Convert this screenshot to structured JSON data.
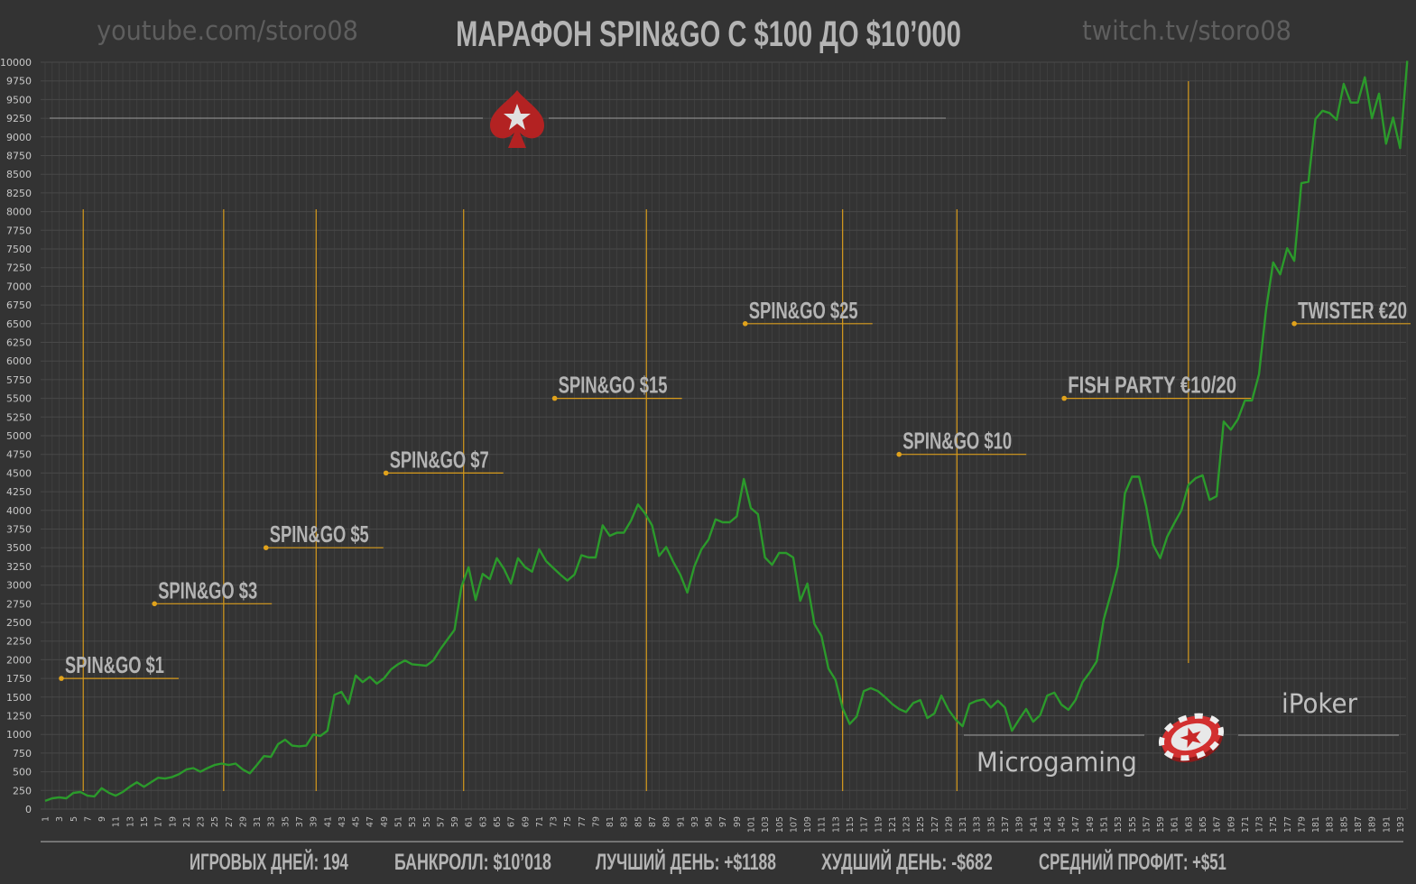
{
  "header": {
    "youtube": "youtube.com/storo08",
    "title": "МАРАФОН SPIN&GO С $100 ДО $10’000",
    "twitch": "twitch.tv/storo08"
  },
  "footer": {
    "stats": [
      "ИГРОВЫХ ДНЕЙ: 194",
      "БАНКРОЛЛ: $10’018",
      "ЛУЧШИЙ ДЕНЬ: +$1188",
      "ХУДШИЙ ДЕНЬ: -$682",
      "СРЕДНИЙ ПРОФИТ: +$51"
    ]
  },
  "rooms": {
    "left": "Microgaming",
    "right": "iPoker",
    "top_logo": "pokerstars-spade-logo",
    "bottom_logo": "red-star-poker-chip"
  },
  "colors": {
    "background": "#333333",
    "line": "#2b9a2b",
    "marker": "#e0a21c",
    "text": "#b4b4b4",
    "grid": "#444444"
  },
  "chart_data": {
    "type": "line",
    "title": "МАРАФОН SPIN&GO С $100 ДО $10’000",
    "xlabel": "",
    "ylabel": "",
    "xlim": [
      1,
      194
    ],
    "ylim": [
      0,
      10000
    ],
    "ytick_step": 250,
    "xtick_labels": "odd days 1–193",
    "grid": true,
    "series": [
      {
        "name": "Bankroll",
        "values": [
          110,
          145,
          157,
          145,
          217,
          230,
          180,
          170,
          280,
          220,
          180,
          230,
          300,
          360,
          300,
          360,
          420,
          410,
          430,
          470,
          530,
          550,
          500,
          550,
          590,
          610,
          590,
          610,
          530,
          480,
          590,
          710,
          700,
          870,
          930,
          850,
          840,
          850,
          1000,
          980,
          1050,
          1530,
          1570,
          1410,
          1790,
          1700,
          1770,
          1680,
          1750,
          1870,
          1940,
          1990,
          1940,
          1930,
          1920,
          1990,
          2140,
          2270,
          2400,
          2980,
          3240,
          2800,
          3150,
          3080,
          3360,
          3220,
          3020,
          3360,
          3240,
          3180,
          3480,
          3320,
          3230,
          3140,
          3060,
          3140,
          3400,
          3370,
          3370,
          3800,
          3660,
          3700,
          3700,
          3860,
          4080,
          3960,
          3800,
          3390,
          3510,
          3310,
          3140,
          2900,
          3250,
          3480,
          3610,
          3880,
          3840,
          3840,
          3920,
          4420,
          4030,
          3950,
          3370,
          3270,
          3430,
          3430,
          3370,
          2790,
          3020,
          2480,
          2320,
          1880,
          1730,
          1350,
          1140,
          1240,
          1580,
          1620,
          1580,
          1500,
          1410,
          1340,
          1300,
          1420,
          1460,
          1220,
          1280,
          1520,
          1330,
          1200,
          1110,
          1410,
          1450,
          1470,
          1360,
          1450,
          1360,
          1050,
          1200,
          1340,
          1170,
          1260,
          1520,
          1560,
          1400,
          1330,
          1460,
          1700,
          1830,
          1980,
          2540,
          2880,
          3250,
          4230,
          4450,
          4450,
          4060,
          3540,
          3360,
          3650,
          3830,
          4000,
          4340,
          4430,
          4470,
          4140,
          4190,
          5190,
          5080,
          5220,
          5470,
          5470,
          5820,
          6690,
          7320,
          7160,
          7510,
          7340,
          8380,
          8400,
          9240,
          9350,
          9320,
          9230,
          9710,
          9460,
          9460,
          9800,
          9250,
          9580,
          8910,
          9260,
          8850,
          10018
        ]
      }
    ],
    "limit_change_days": [
      6.4,
      26.3,
      39.4,
      60.3,
      86.2,
      114,
      130.2,
      163
    ],
    "annotations": [
      {
        "label": "SPIN&GO $1",
        "day": 3.3,
        "value": 1750
      },
      {
        "label": "SPIN&GO $3",
        "day": 16.5,
        "value": 2750
      },
      {
        "label": "SPIN&GO $5",
        "day": 32.3,
        "value": 3500
      },
      {
        "label": "SPIN&GO $7",
        "day": 49.3,
        "value": 4500
      },
      {
        "label": "SPIN&GO $15",
        "day": 73.2,
        "value": 5500
      },
      {
        "label": "SPIN&GO $25",
        "day": 100.2,
        "value": 6500
      },
      {
        "label": "SPIN&GO $10",
        "day": 122,
        "value": 4750
      },
      {
        "label": "FISH PARTY €10/20",
        "day": 145.4,
        "value": 5500
      },
      {
        "label": "TWISTER €20",
        "day": 178,
        "value": 6500
      }
    ]
  }
}
